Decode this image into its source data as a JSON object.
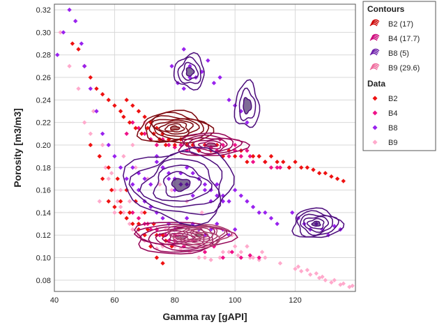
{
  "chart_data": {
    "type": "scatter",
    "xlabel": "Gamma ray [gAPI]",
    "ylabel": "Porosity [m3/m3]",
    "xlim": [
      40,
      140
    ],
    "ylim": [
      0.07,
      0.325
    ],
    "x_ticks": [
      "40",
      "60",
      "80",
      "100",
      "120"
    ],
    "y_ticks": [
      "0.08",
      "0.10",
      "0.12",
      "0.14",
      "0.16",
      "0.18",
      "0.20",
      "0.22",
      "0.24",
      "0.26",
      "0.28",
      "0.30",
      "0.32"
    ],
    "grid": true,
    "legend_position": "right",
    "legend": {
      "contours_title": "Contours",
      "data_title": "Data",
      "contours": [
        {
          "label": "B2 (17)",
          "color": "#cc0000"
        },
        {
          "label": "B4 (17.7)",
          "color": "#cc0077"
        },
        {
          "label": "B8 (5)",
          "color": "#6a1aa8"
        },
        {
          "label": "B9 (29.6)",
          "color": "#ee6699"
        }
      ],
      "data": [
        {
          "label": "B2",
          "color": "#ee1111"
        },
        {
          "label": "B4",
          "color": "#ee1188"
        },
        {
          "label": "B8",
          "color": "#9922ee"
        },
        {
          "label": "B9",
          "color": "#ffaacc"
        }
      ]
    },
    "series": [
      {
        "color": "#ffaacc",
        "x": [
          42,
          45,
          48,
          50,
          52,
          55,
          57,
          58,
          60,
          61,
          62,
          63,
          64,
          65,
          66,
          68,
          70,
          72,
          74,
          76,
          78,
          80,
          82,
          85,
          88,
          90,
          92,
          95,
          98,
          100,
          102,
          105,
          108,
          110,
          115,
          120,
          122,
          125,
          128,
          130,
          132,
          135,
          138,
          53,
          56,
          59,
          62,
          65,
          69,
          73,
          77,
          81,
          86,
          91,
          96,
          101,
          106,
          63,
          67,
          71,
          75,
          79,
          84,
          89,
          94,
          99,
          104,
          109,
          121,
          124,
          127,
          129,
          133,
          136,
          139,
          55,
          60,
          66,
          70
        ],
        "y": [
          0.3,
          0.27,
          0.25,
          0.22,
          0.21,
          0.19,
          0.18,
          0.17,
          0.16,
          0.15,
          0.145,
          0.14,
          0.135,
          0.13,
          0.125,
          0.12,
          0.115,
          0.11,
          0.108,
          0.11,
          0.112,
          0.11,
          0.108,
          0.105,
          0.1,
          0.1,
          0.098,
          0.1,
          0.105,
          0.11,
          0.105,
          0.1,
          0.098,
          0.1,
          0.095,
          0.09,
          0.088,
          0.085,
          0.082,
          0.08,
          0.078,
          0.076,
          0.074,
          0.23,
          0.2,
          0.175,
          0.16,
          0.15,
          0.14,
          0.13,
          0.125,
          0.12,
          0.115,
          0.11,
          0.105,
          0.102,
          0.1,
          0.19,
          0.18,
          0.17,
          0.165,
          0.16,
          0.15,
          0.14,
          0.13,
          0.12,
          0.11,
          0.105,
          0.092,
          0.089,
          0.086,
          0.083,
          0.08,
          0.077,
          0.075,
          0.15,
          0.14,
          0.2,
          0.22
        ]
      },
      {
        "color": "#ee1188",
        "x": [
          64,
          66,
          68,
          70,
          72,
          74,
          76,
          78,
          80,
          82,
          84,
          86,
          88,
          90,
          92,
          94,
          96,
          98,
          100,
          102,
          104,
          106,
          108,
          110,
          112,
          114,
          95,
          100,
          105,
          110,
          115,
          118,
          70,
          72,
          75,
          78,
          80,
          83,
          86,
          90,
          93,
          96,
          99,
          102,
          105,
          108,
          66,
          68,
          71,
          74,
          77,
          80
        ],
        "y": [
          0.21,
          0.22,
          0.215,
          0.21,
          0.205,
          0.2,
          0.205,
          0.2,
          0.198,
          0.2,
          0.195,
          0.2,
          0.195,
          0.2,
          0.198,
          0.195,
          0.2,
          0.19,
          0.195,
          0.19,
          0.195,
          0.185,
          0.19,
          0.185,
          0.18,
          0.18,
          0.205,
          0.2,
          0.19,
          0.185,
          0.18,
          0.18,
          0.13,
          0.125,
          0.12,
          0.115,
          0.12,
          0.11,
          0.115,
          0.105,
          0.11,
          0.1,
          0.105,
          0.1,
          0.102,
          0.1,
          0.14,
          0.135,
          0.13,
          0.125,
          0.12,
          0.115
        ]
      },
      {
        "color": "#ee1111",
        "x": [
          46,
          48,
          50,
          52,
          54,
          56,
          58,
          60,
          62,
          63,
          64,
          65,
          66,
          67,
          68,
          69,
          70,
          71,
          72,
          73,
          74,
          75,
          76,
          77,
          78,
          80,
          82,
          84,
          86,
          88,
          90,
          92,
          94,
          96,
          98,
          100,
          102,
          104,
          106,
          108,
          110,
          112,
          114,
          116,
          118,
          120,
          122,
          124,
          126,
          128,
          130,
          132,
          134,
          136,
          58,
          60,
          62,
          64,
          66,
          68,
          70,
          72,
          74,
          76,
          52,
          55,
          58,
          61,
          64,
          67,
          70,
          73,
          76,
          79,
          56,
          59,
          62,
          65,
          68,
          71,
          74,
          77
        ],
        "y": [
          0.29,
          0.285,
          0.27,
          0.26,
          0.25,
          0.245,
          0.24,
          0.235,
          0.23,
          0.225,
          0.24,
          0.22,
          0.235,
          0.215,
          0.23,
          0.21,
          0.225,
          0.215,
          0.22,
          0.21,
          0.215,
          0.205,
          0.21,
          0.2,
          0.205,
          0.2,
          0.205,
          0.2,
          0.2,
          0.195,
          0.2,
          0.195,
          0.2,
          0.19,
          0.195,
          0.19,
          0.195,
          0.185,
          0.19,
          0.19,
          0.185,
          0.19,
          0.185,
          0.185,
          0.18,
          0.185,
          0.18,
          0.18,
          0.178,
          0.175,
          0.175,
          0.172,
          0.17,
          0.168,
          0.15,
          0.145,
          0.14,
          0.135,
          0.13,
          0.125,
          0.12,
          0.11,
          0.1,
          0.095,
          0.2,
          0.19,
          0.18,
          0.17,
          0.16,
          0.15,
          0.14,
          0.13,
          0.12,
          0.11,
          0.17,
          0.16,
          0.15,
          0.14,
          0.13,
          0.125,
          0.12,
          0.115
        ]
      },
      {
        "color": "#9922ee",
        "x": [
          41,
          43,
          45,
          47,
          49,
          50,
          52,
          54,
          56,
          58,
          60,
          62,
          64,
          66,
          68,
          70,
          72,
          74,
          76,
          78,
          80,
          82,
          84,
          86,
          88,
          90,
          92,
          94,
          96,
          98,
          100,
          74,
          76,
          78,
          80,
          82,
          84,
          86,
          88,
          90,
          92,
          94,
          96,
          98,
          100,
          102,
          104,
          106,
          108,
          110,
          112,
          114,
          119,
          121,
          123,
          125,
          127,
          129,
          131,
          133,
          135,
          83,
          85,
          87,
          89,
          91,
          93,
          95,
          79,
          81,
          83,
          85,
          98,
          100,
          102,
          104,
          66,
          68,
          70,
          72,
          74,
          76,
          78,
          80,
          82,
          84,
          86,
          88,
          90,
          92,
          94,
          96
        ],
        "y": [
          0.28,
          0.3,
          0.32,
          0.31,
          0.29,
          0.27,
          0.25,
          0.23,
          0.21,
          0.2,
          0.19,
          0.18,
          0.17,
          0.165,
          0.16,
          0.15,
          0.145,
          0.14,
          0.135,
          0.13,
          0.125,
          0.13,
          0.135,
          0.13,
          0.125,
          0.12,
          0.125,
          0.13,
          0.125,
          0.12,
          0.125,
          0.19,
          0.18,
          0.17,
          0.16,
          0.175,
          0.165,
          0.155,
          0.17,
          0.16,
          0.15,
          0.165,
          0.155,
          0.15,
          0.16,
          0.155,
          0.15,
          0.145,
          0.14,
          0.14,
          0.135,
          0.13,
          0.14,
          0.135,
          0.13,
          0.125,
          0.13,
          0.125,
          0.12,
          0.128,
          0.125,
          0.285,
          0.27,
          0.26,
          0.265,
          0.275,
          0.255,
          0.26,
          0.27,
          0.255,
          0.25,
          0.26,
          0.24,
          0.235,
          0.23,
          0.22,
          0.18,
          0.175,
          0.17,
          0.165,
          0.185,
          0.18,
          0.175,
          0.17,
          0.165,
          0.18,
          0.175,
          0.17,
          0.165,
          0.16,
          0.155,
          0.15
        ]
      }
    ],
    "contours": [
      {
        "color": "#aa1010",
        "fill": "#7a0a0a",
        "center": [
          80,
          0.215
        ],
        "rx": 12,
        "ry": 0.014,
        "levels": 8
      },
      {
        "color": "#cc1177",
        "fill": "#6a0a40",
        "center": [
          92,
          0.2
        ],
        "rx": 11,
        "ry": 0.01,
        "levels": 6
      },
      {
        "color": "#cc1177",
        "fill": "#6a0a40",
        "center": [
          82,
          0.118
        ],
        "rx": 16,
        "ry": 0.014,
        "levels": 8
      },
      {
        "color": "#ee6699",
        "fill": "#4a1a2a",
        "center": [
          88,
          0.12
        ],
        "rx": 10,
        "ry": 0.01,
        "levels": 7
      },
      {
        "color": "#6a1aa8",
        "fill": "#2a0a50",
        "center": [
          82,
          0.165
        ],
        "rx": 18,
        "ry": 0.032,
        "levels": 6
      },
      {
        "color": "#6a1aa8",
        "fill": "#2a0a50",
        "center": [
          85,
          0.265
        ],
        "rx": 5,
        "ry": 0.015,
        "levels": 4
      },
      {
        "color": "#6a1aa8",
        "fill": "#2a0a50",
        "center": [
          104,
          0.235
        ],
        "rx": 4,
        "ry": 0.02,
        "levels": 3
      },
      {
        "color": "#6a1aa8",
        "fill": "#2a0a50",
        "center": [
          127,
          0.13
        ],
        "rx": 8,
        "ry": 0.013,
        "levels": 6
      }
    ]
  }
}
